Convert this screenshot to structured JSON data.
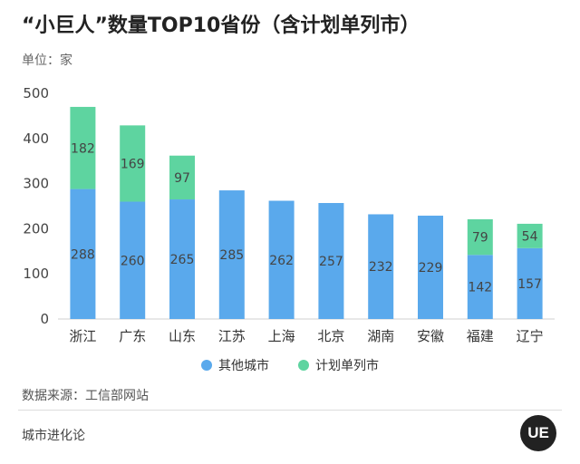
{
  "chart_data": {
    "type": "bar",
    "stacked": true,
    "title": "“小巨人”数量TOP10省份（含计划单列市）",
    "unit_label": "单位：家",
    "categories": [
      "浙江",
      "广东",
      "山东",
      "江苏",
      "上海",
      "北京",
      "湖南",
      "安徽",
      "福建",
      "辽宁"
    ],
    "series": [
      {
        "name": "其他城市",
        "color": "#5aa9ec",
        "values": [
          288,
          260,
          265,
          285,
          262,
          257,
          232,
          229,
          142,
          157
        ]
      },
      {
        "name": "计划单列市",
        "color": "#5ed4a0",
        "values": [
          182,
          169,
          97,
          null,
          null,
          null,
          null,
          null,
          79,
          54
        ]
      }
    ],
    "ylim": [
      0,
      500
    ],
    "yticks": [
      0,
      100,
      200,
      300,
      400,
      500
    ],
    "grid": false,
    "legend_position": "bottom"
  },
  "source_text": "数据来源：工信部网站",
  "footer_text": "城市进化论",
  "logo_text": "UE"
}
